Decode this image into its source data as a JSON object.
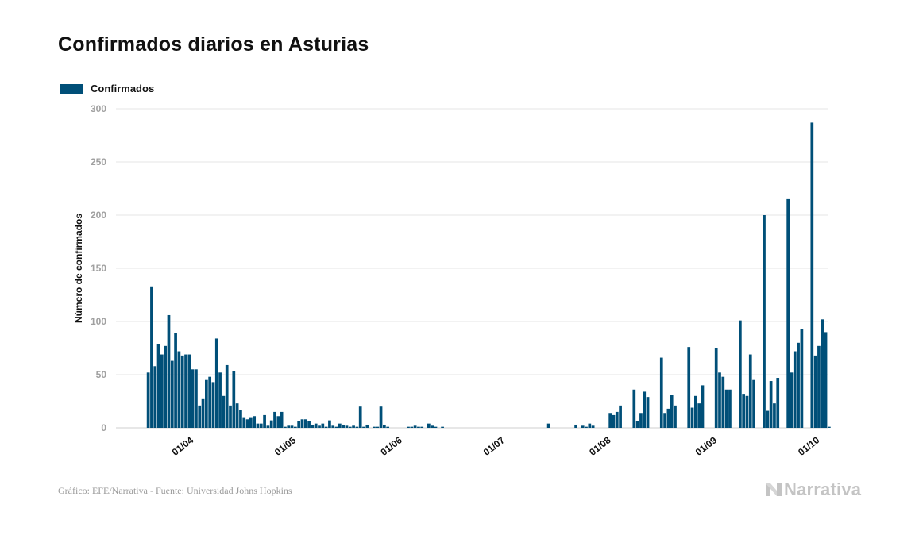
{
  "title": "Confirmados diarios en Asturias",
  "colors": {
    "bar": "#004f78",
    "tick_y": "#a0a0a0",
    "brand": "#c4c4c4"
  },
  "chart_data": {
    "type": "bar",
    "title": "Confirmados diarios en Asturias",
    "legend": [
      {
        "label": "Confirmados",
        "color": "#004f78"
      }
    ],
    "legend_position": "top-left",
    "ylabel": "Número de confirmados",
    "xlabel": "",
    "ylim": [
      0,
      300
    ],
    "yticks": [
      0,
      50,
      100,
      150,
      200,
      250,
      300
    ],
    "grid": true,
    "x_start": "2020-03-12",
    "x_end": "2020-10-06",
    "xticks": [
      {
        "label": "01/04",
        "date": "2020-04-01"
      },
      {
        "label": "01/05",
        "date": "2020-05-01"
      },
      {
        "label": "01/06",
        "date": "2020-06-01"
      },
      {
        "label": "01/07",
        "date": "2020-07-01"
      },
      {
        "label": "01/08",
        "date": "2020-08-01"
      },
      {
        "label": "01/09",
        "date": "2020-09-01"
      },
      {
        "label": "01/10",
        "date": "2020-10-01"
      }
    ],
    "series": [
      {
        "name": "Confirmados",
        "start_date": "2020-03-21",
        "values": [
          52,
          133,
          58,
          79,
          69,
          77,
          106,
          63,
          89,
          72,
          68,
          69,
          69,
          55,
          55,
          21,
          27,
          45,
          48,
          43,
          84,
          52,
          30,
          59,
          21,
          53,
          23,
          17,
          10,
          8,
          10,
          11,
          4,
          4,
          12,
          2,
          7,
          15,
          11,
          15,
          1,
          2,
          2,
          1,
          6,
          8,
          8,
          6,
          3,
          4,
          2,
          4,
          1,
          7,
          2,
          1,
          4,
          3,
          2,
          1,
          2,
          1,
          20,
          1,
          3,
          0,
          1,
          1,
          20,
          3,
          1,
          0,
          0,
          0,
          0,
          0,
          1,
          1,
          2,
          1,
          1,
          0,
          4,
          2,
          1,
          0,
          1,
          0,
          0,
          0,
          0,
          0,
          0,
          0,
          0,
          0,
          0,
          0,
          0,
          0,
          0,
          0,
          0,
          0,
          0,
          0,
          0,
          0,
          0,
          0,
          0,
          0,
          0,
          0,
          0,
          0,
          0,
          4,
          0,
          0,
          0,
          0,
          0,
          0,
          0,
          3,
          0,
          2,
          1,
          4,
          2,
          0,
          0,
          0,
          0,
          14,
          12,
          15,
          21,
          0,
          0,
          0,
          36,
          6,
          14,
          34,
          29,
          0,
          0,
          0,
          66,
          14,
          18,
          31,
          21,
          0,
          0,
          0,
          76,
          19,
          30,
          23,
          40,
          0,
          0,
          0,
          75,
          52,
          48,
          36,
          36,
          0,
          0,
          101,
          32,
          30,
          69,
          45,
          0,
          0,
          200,
          16,
          44,
          23,
          47,
          0,
          0,
          215,
          52,
          72,
          80,
          93,
          0,
          0,
          287,
          68,
          77,
          102,
          90,
          1
        ]
      }
    ]
  },
  "footer": {
    "credit": "Gráfico: EFE/Narrativa - Fuente: Universidad Johns Hopkins",
    "brand": "Narrativa",
    "brand_icon": "narrativa-logo-icon"
  }
}
